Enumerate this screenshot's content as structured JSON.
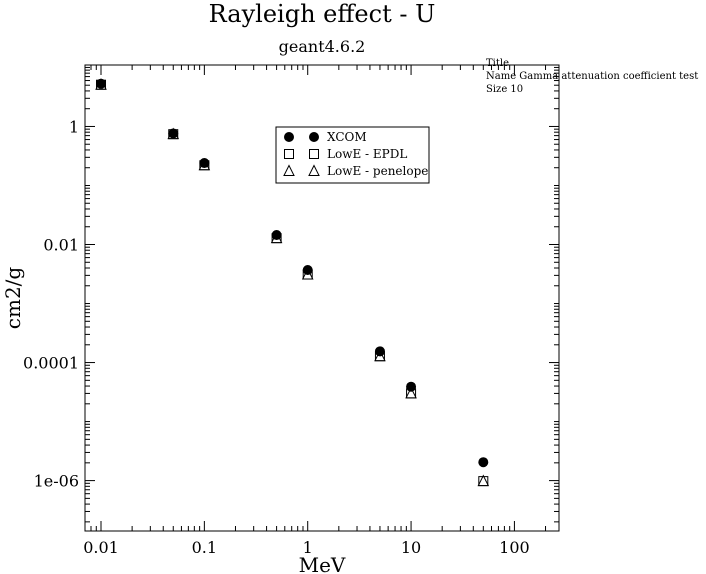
{
  "chart_data": {
    "type": "scatter",
    "title": "Rayleigh effect - U",
    "subtitle": "geant4.6.2",
    "xlabel": "MeV",
    "ylabel": "cm2/g",
    "xscale": "log",
    "yscale": "log",
    "xlim": [
      0.007,
      270
    ],
    "ylim": [
      1.4e-07,
      11
    ],
    "xticks": [
      {
        "value": 0.01,
        "label": "0.01"
      },
      {
        "value": 0.1,
        "label": "0.1"
      },
      {
        "value": 1,
        "label": "1"
      },
      {
        "value": 10,
        "label": "10"
      },
      {
        "value": 100,
        "label": "100"
      }
    ],
    "yticks": [
      {
        "value": 1,
        "label": "1"
      },
      {
        "value": 0.01,
        "label": "0.01"
      },
      {
        "value": 0.0001,
        "label": "0.0001"
      },
      {
        "value": 1e-06,
        "label": "1e-06"
      }
    ],
    "legend_position": "upper-center",
    "series": [
      {
        "name": "XCOM",
        "marker": "circle-filled",
        "x": [
          0.01,
          0.05,
          0.1,
          0.5,
          1,
          5,
          10,
          50
        ],
        "y": [
          5.3,
          0.76,
          0.24,
          0.0145,
          0.0037,
          0.000155,
          3.9e-05,
          2.05e-06
        ]
      },
      {
        "name": "LowE - EPDL",
        "marker": "square-open",
        "x": [
          0.01,
          0.05,
          0.1,
          0.5,
          1,
          5,
          10,
          50
        ],
        "y": [
          5.1,
          0.74,
          0.22,
          0.0128,
          0.0031,
          0.000128,
          3e-05,
          9.8e-07
        ]
      },
      {
        "name": "LowE - penelope",
        "marker": "triangle-open",
        "x": [
          0.01,
          0.05,
          0.1,
          0.5,
          1,
          5,
          10,
          50
        ],
        "y": [
          5.1,
          0.74,
          0.22,
          0.0128,
          0.0031,
          0.000128,
          3e-05,
          9.8e-07
        ]
      }
    ],
    "info_box": {
      "title": "Title",
      "name": "Name  Gamma attenuation coefficient test",
      "size": "Size  10"
    }
  }
}
